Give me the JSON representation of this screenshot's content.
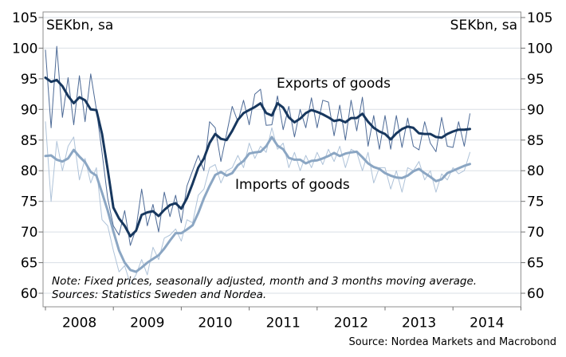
{
  "labels": {
    "unit_left": "SEKbn, sa",
    "unit_right": "SEKbn, sa",
    "series_label_exports": "Exports of goods",
    "series_label_imports": "Imports of goods",
    "note_line1": "Note: Fixed prices, seasonally adjusted, month and 3 months moving average.",
    "note_line2": "Sources: Statistics Sweden and Nordea.",
    "source": "Source: Nordea Markets and Macrobond"
  },
  "colors": {
    "exports_thick": "#17375E",
    "exports_thin": "#4D6A96",
    "imports_thick": "#8BA6C3",
    "imports_thin": "#AFC3D9",
    "gridline": "#DADFE5",
    "frame": "#8F8F8F"
  },
  "chart_data": {
    "type": "line",
    "unit": "SEKbn, sa",
    "x_frequency": "monthly",
    "x_start": "2008-01",
    "x_end": "2014-04",
    "x_tick_years": [
      "2008",
      "2009",
      "2010",
      "2011",
      "2012",
      "2013",
      "2014"
    ],
    "ylim": [
      60,
      105
    ],
    "yticks": [
      60,
      65,
      70,
      75,
      80,
      85,
      90,
      95,
      100,
      105
    ],
    "grid": "horizontal",
    "axis_labels_both_sides": true,
    "series": [
      {
        "name": "Exports of goods (monthly)",
        "color": "#4D6A96",
        "width": 1,
        "values": [
          99.7,
          87.0,
          100.3,
          88.7,
          95.2,
          87.5,
          95.5,
          88.0,
          95.8,
          90.0,
          83.0,
          75.5,
          71.0,
          69.5,
          73.5,
          67.8,
          70.5,
          77.0,
          71.0,
          74.5,
          70.0,
          76.5,
          72.5,
          76.0,
          71.5,
          77.5,
          80.0,
          82.5,
          80.0,
          88.0,
          87.0,
          81.5,
          86.0,
          90.5,
          88.0,
          91.5,
          87.5,
          92.5,
          93.3,
          87.4,
          87.5,
          92.2,
          86.7,
          90.5,
          85.5,
          90.0,
          87.0,
          91.9,
          87.0,
          91.5,
          91.2,
          85.7,
          90.7,
          85.0,
          91.5,
          86.5,
          92.0,
          84.0,
          89.0,
          83.5,
          89.0,
          83.5,
          89.0,
          83.8,
          88.6,
          84.0,
          83.4,
          88.0,
          84.5,
          83.1,
          88.7,
          84.0,
          83.8,
          88.0,
          84.0,
          89.3
        ]
      },
      {
        "name": "Exports of goods (3 months moving average)",
        "color": "#17375E",
        "width": 3,
        "values": [
          95.2,
          94.5,
          94.8,
          93.8,
          92.2,
          91.0,
          92.0,
          91.5,
          90.0,
          89.9,
          86.0,
          80.2,
          74.0,
          72.2,
          71.0,
          69.3,
          70.2,
          72.8,
          73.2,
          73.4,
          72.6,
          73.6,
          74.4,
          74.7,
          73.8,
          75.5,
          77.9,
          80.5,
          82.0,
          84.5,
          86.0,
          85.2,
          85.0,
          86.5,
          88.3,
          89.4,
          89.9,
          90.4,
          91.0,
          89.4,
          89.0,
          91.0,
          90.3,
          88.7,
          87.9,
          88.5,
          89.4,
          89.9,
          89.6,
          89.2,
          88.7,
          88.1,
          88.3,
          87.9,
          88.6,
          88.6,
          89.3,
          88.0,
          87.0,
          86.4,
          86.0,
          85.1,
          86.1,
          86.8,
          87.2,
          87.0,
          86.1,
          86.0,
          86.0,
          85.5,
          85.4,
          86.0,
          86.4,
          86.7,
          86.7,
          86.8
        ]
      },
      {
        "name": "Imports of goods (monthly)",
        "color": "#AFC3D9",
        "width": 1,
        "values": [
          88.0,
          75.0,
          84.8,
          80.0,
          84.0,
          85.5,
          78.5,
          82.0,
          78.0,
          80.5,
          72.0,
          71.0,
          67.0,
          63.5,
          64.5,
          61.5,
          63.0,
          65.5,
          63.0,
          67.5,
          65.5,
          69.0,
          69.5,
          70.5,
          68.5,
          72.0,
          71.5,
          76.0,
          77.0,
          80.5,
          81.0,
          78.0,
          80.0,
          80.5,
          82.5,
          80.5,
          84.5,
          82.0,
          84.0,
          83.0,
          87.0,
          83.5,
          84.5,
          80.5,
          83.0,
          80.0,
          82.5,
          80.5,
          83.0,
          81.0,
          83.5,
          81.5,
          84.0,
          80.5,
          83.5,
          83.0,
          80.0,
          83.0,
          78.0,
          80.5,
          80.5,
          77.0,
          80.0,
          76.5,
          80.5,
          80.0,
          81.5,
          78.5,
          80.0,
          76.5,
          79.5,
          78.5,
          80.5,
          79.5,
          80.0,
          83.0
        ]
      },
      {
        "name": "Imports of goods (3 months moving average)",
        "color": "#8BA6C3",
        "width": 3,
        "values": [
          82.4,
          82.5,
          81.8,
          81.5,
          82.0,
          83.4,
          82.3,
          81.4,
          79.8,
          79.2,
          76.4,
          73.5,
          70.1,
          67.0,
          65.0,
          63.8,
          63.5,
          64.2,
          65.0,
          65.6,
          66.2,
          67.3,
          68.6,
          69.8,
          69.8,
          70.4,
          71.1,
          73.1,
          75.5,
          77.5,
          79.3,
          79.8,
          79.2,
          79.6,
          80.9,
          81.6,
          82.8,
          83.0,
          83.1,
          84.0,
          85.5,
          84.1,
          83.5,
          82.1,
          81.8,
          81.8,
          81.2,
          81.6,
          81.7,
          82.0,
          82.4,
          82.9,
          82.4,
          82.8,
          83.0,
          83.1,
          82.2,
          81.2,
          80.6,
          80.3,
          79.6,
          79.2,
          78.9,
          78.8,
          79.2,
          79.9,
          80.3,
          79.6,
          79.0,
          78.3,
          78.6,
          79.6,
          80.0,
          80.4,
          80.8,
          81.1
        ]
      }
    ]
  }
}
